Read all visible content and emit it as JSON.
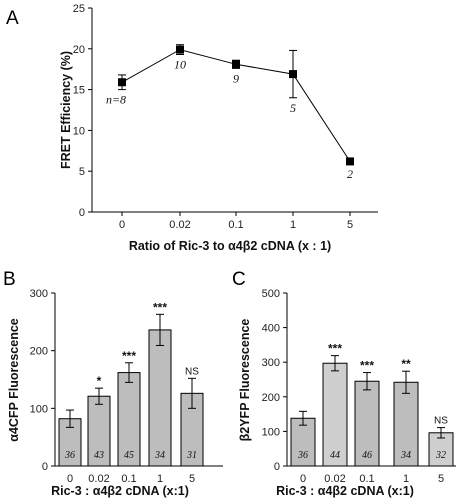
{
  "chart_data": [
    {
      "panel": "A",
      "type": "line",
      "xlabel": "Ratio of Ric-3 to α4β2 cDNA (x : 1)",
      "ylabel": "FRET Efficiency (%)",
      "categories": [
        "0",
        "0.02",
        "0.1",
        "1",
        "5"
      ],
      "values": [
        15.9,
        19.9,
        18.1,
        16.9,
        6.2
      ],
      "errors": [
        0.9,
        0.6,
        0.5,
        2.9,
        0.3
      ],
      "point_labels": [
        "n=8",
        "10",
        "9",
        "5",
        "2"
      ],
      "ylim": [
        0,
        25
      ],
      "yticks": [
        "0",
        "5",
        "10",
        "15",
        "20",
        "25"
      ]
    },
    {
      "panel": "B",
      "type": "bar",
      "xlabel": "Ric-3 : α4β2 cDNA (x:1)",
      "ylabel": "α4CFP Fluorescence",
      "categories": [
        "0",
        "0.02",
        "0.1",
        "1",
        "5"
      ],
      "values": [
        82,
        121,
        162,
        236,
        126
      ],
      "errors": [
        15,
        14,
        17,
        27,
        26
      ],
      "n_labels": [
        "36",
        "43",
        "45",
        "34",
        "31"
      ],
      "significance": [
        "",
        "*",
        "***",
        "***",
        "NS"
      ],
      "ylim": [
        0,
        300
      ],
      "yticks": [
        "0",
        "100",
        "200",
        "300"
      ]
    },
    {
      "panel": "C",
      "type": "bar",
      "xlabel": "Ric-3 : α4β2 cDNA (x:1)",
      "ylabel": "β2YFP Fluorescence",
      "categories": [
        "0",
        "0.02",
        "0.1",
        "1",
        "5"
      ],
      "values": [
        138,
        297,
        245,
        242,
        96
      ],
      "errors": [
        20,
        22,
        25,
        32,
        15
      ],
      "n_labels": [
        "36",
        "44",
        "46",
        "34",
        "32"
      ],
      "significance": [
        "",
        "***",
        "***",
        "**",
        "NS"
      ],
      "ylim": [
        0,
        500
      ],
      "yticks": [
        "0",
        "100",
        "200",
        "300",
        "400",
        "500"
      ]
    }
  ],
  "colors": {
    "bar_dark": "#bdbdbd",
    "bar_light": "#cfcfcf",
    "line": "#000000"
  }
}
